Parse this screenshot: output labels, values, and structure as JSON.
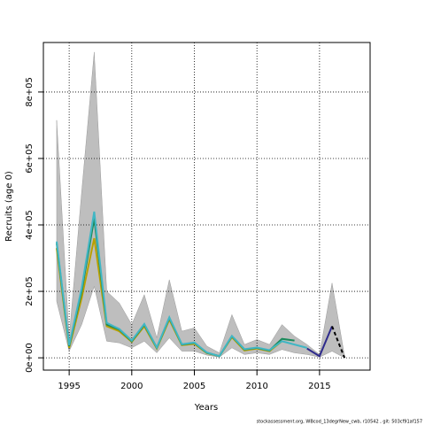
{
  "chart_data": {
    "type": "line",
    "x_label": "Years",
    "y_label": "Recruits (age 0)",
    "footer": "stockassessment.org, WBcod_13degrNew_cwb, r10542 , git: 503cf91af157",
    "x": [
      1994,
      1995,
      1996,
      1997,
      1998,
      1999,
      2000,
      2001,
      2002,
      2003,
      2004,
      2005,
      2006,
      2007,
      2008,
      2009,
      2010,
      2011,
      2012,
      2013,
      2014,
      2015,
      2016,
      2017
    ],
    "xlim": [
      1992.94,
      2019.04
    ],
    "xticks": [
      1995,
      2000,
      2005,
      2010,
      2015
    ],
    "ylim": [
      -37000,
      949000
    ],
    "yticks": [
      {
        "value": 0,
        "label": "0e+00"
      },
      {
        "value": 200000,
        "label": "2e+05"
      },
      {
        "value": 400000,
        "label": "4e+05"
      },
      {
        "value": 600000,
        "label": "6e+05"
      },
      {
        "value": 800000,
        "label": "8e+05"
      }
    ],
    "grid": true,
    "band": {
      "color": "#bebebe",
      "upper": [
        715000,
        60000,
        500000,
        920000,
        200000,
        165000,
        100000,
        190000,
        60000,
        235000,
        80000,
        90000,
        35000,
        15000,
        130000,
        40000,
        55000,
        40000,
        100000,
        65000,
        40000,
        10000,
        225000,
        5000
      ],
      "lower": [
        170000,
        20000,
        100000,
        215000,
        50000,
        45000,
        30000,
        50000,
        15000,
        60000,
        20000,
        20000,
        8000,
        2000,
        30000,
        10000,
        15000,
        10000,
        25000,
        15000,
        10000,
        2000,
        20000,
        0
      ]
    },
    "series": [
      {
        "color": "#b8a000",
        "values": [
          330000,
          30000,
          180000,
          360000,
          95000,
          80000,
          48000,
          95000,
          28000,
          115000,
          38000,
          42000,
          14000,
          5000,
          62000,
          22000,
          28000,
          20000,
          50000,
          null,
          null,
          null,
          null,
          null
        ]
      },
      {
        "color": "#1a8a5a",
        "values": [
          345000,
          35000,
          200000,
          420000,
          100000,
          85000,
          50000,
          100000,
          30000,
          120000,
          40000,
          45000,
          15000,
          5000,
          65000,
          25000,
          30000,
          22000,
          57000,
          52000,
          null,
          null,
          null,
          null
        ]
      },
      {
        "color": "#41b6c4",
        "values": [
          350000,
          38000,
          210000,
          440000,
          105000,
          87000,
          52000,
          102000,
          31000,
          122000,
          41000,
          46000,
          16000,
          5000,
          66000,
          26000,
          31000,
          23000,
          50000,
          40000,
          30000,
          null,
          null,
          null
        ]
      },
      {
        "color": "#2e2a8c",
        "values": [
          null,
          null,
          null,
          null,
          null,
          null,
          null,
          null,
          null,
          null,
          null,
          null,
          null,
          null,
          null,
          null,
          null,
          null,
          null,
          null,
          28000,
          5000,
          95000,
          null
        ]
      },
      {
        "color": "#000000",
        "dashed": true,
        "values": [
          null,
          null,
          null,
          null,
          null,
          null,
          null,
          null,
          null,
          null,
          null,
          null,
          null,
          null,
          null,
          null,
          null,
          null,
          null,
          null,
          null,
          null,
          95000,
          0
        ]
      }
    ]
  }
}
